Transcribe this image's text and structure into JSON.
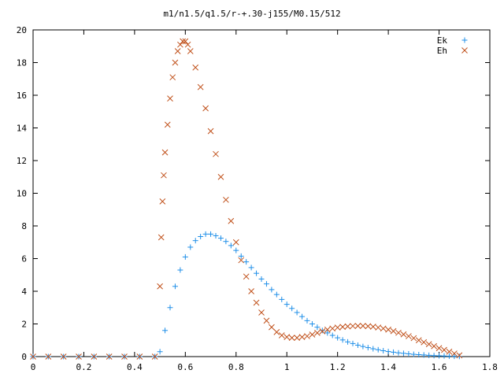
{
  "chart_data": {
    "type": "scatter",
    "title": "m1/n1.5/q1.5/r-+.30-j155/M0.15/512",
    "xlabel": "",
    "ylabel": "",
    "xlim": [
      0,
      1.8
    ],
    "ylim": [
      0,
      20
    ],
    "x_ticks": [
      0,
      0.2,
      0.4,
      0.6,
      0.8,
      1,
      1.2,
      1.4,
      1.6,
      1.8
    ],
    "y_ticks": [
      0,
      2,
      4,
      6,
      8,
      10,
      12,
      14,
      16,
      18,
      20
    ],
    "x_tick_labels": [
      "0",
      "0.2",
      "0.4",
      "0.6",
      "0.8",
      "1",
      "1.2",
      "1.4",
      "1.6",
      "1.8"
    ],
    "y_tick_labels": [
      "0",
      "2",
      "4",
      "6",
      "8",
      "10",
      "12",
      "14",
      "16",
      "18",
      "20"
    ],
    "grid": false,
    "legend_position": "top-right",
    "series": [
      {
        "name": "Ek",
        "marker": "plus",
        "color": "#1f8fe8",
        "x": [
          0,
          0.06,
          0.12,
          0.18,
          0.24,
          0.3,
          0.36,
          0.42,
          0.48,
          0.5,
          0.52,
          0.54,
          0.56,
          0.58,
          0.6,
          0.62,
          0.64,
          0.66,
          0.68,
          0.7,
          0.72,
          0.74,
          0.76,
          0.78,
          0.8,
          0.82,
          0.84,
          0.86,
          0.88,
          0.9,
          0.92,
          0.94,
          0.96,
          0.98,
          1.0,
          1.02,
          1.04,
          1.06,
          1.08,
          1.1,
          1.12,
          1.14,
          1.16,
          1.18,
          1.2,
          1.22,
          1.24,
          1.26,
          1.28,
          1.3,
          1.32,
          1.34,
          1.36,
          1.38,
          1.4,
          1.42,
          1.44,
          1.46,
          1.48,
          1.5,
          1.52,
          1.54,
          1.56,
          1.58,
          1.6,
          1.62,
          1.64,
          1.66,
          1.68
        ],
        "y": [
          0,
          0,
          0,
          0,
          0,
          0,
          0,
          0,
          0,
          0.3,
          1.6,
          3.0,
          4.3,
          5.3,
          6.1,
          6.7,
          7.1,
          7.35,
          7.5,
          7.5,
          7.4,
          7.25,
          7.05,
          6.8,
          6.5,
          6.15,
          5.8,
          5.45,
          5.1,
          4.75,
          4.45,
          4.1,
          3.8,
          3.5,
          3.2,
          2.95,
          2.7,
          2.45,
          2.2,
          2.0,
          1.8,
          1.6,
          1.45,
          1.3,
          1.15,
          1.02,
          0.9,
          0.8,
          0.7,
          0.62,
          0.55,
          0.48,
          0.42,
          0.36,
          0.31,
          0.27,
          0.23,
          0.2,
          0.17,
          0.14,
          0.12,
          0.1,
          0.08,
          0.06,
          0.05,
          0.04,
          0.03,
          0.02,
          0.01
        ]
      },
      {
        "name": "Eh",
        "marker": "cross",
        "color": "#c0501a",
        "x": [
          0,
          0.06,
          0.12,
          0.18,
          0.24,
          0.3,
          0.36,
          0.42,
          0.48,
          0.5,
          0.505,
          0.51,
          0.515,
          0.52,
          0.53,
          0.54,
          0.55,
          0.56,
          0.57,
          0.58,
          0.59,
          0.6,
          0.61,
          0.62,
          0.64,
          0.66,
          0.68,
          0.7,
          0.72,
          0.74,
          0.76,
          0.78,
          0.8,
          0.82,
          0.84,
          0.86,
          0.88,
          0.9,
          0.92,
          0.94,
          0.96,
          0.98,
          1.0,
          1.02,
          1.04,
          1.06,
          1.08,
          1.1,
          1.12,
          1.14,
          1.16,
          1.18,
          1.2,
          1.22,
          1.24,
          1.26,
          1.28,
          1.3,
          1.32,
          1.34,
          1.36,
          1.38,
          1.4,
          1.42,
          1.44,
          1.46,
          1.48,
          1.5,
          1.52,
          1.54,
          1.56,
          1.58,
          1.6,
          1.62,
          1.64,
          1.66,
          1.68
        ],
        "y": [
          0,
          0,
          0,
          0,
          0,
          0,
          0,
          0,
          0,
          4.3,
          7.3,
          9.5,
          11.1,
          12.5,
          14.2,
          15.8,
          17.1,
          18.0,
          18.7,
          19.1,
          19.3,
          19.3,
          19.1,
          18.7,
          17.7,
          16.5,
          15.2,
          13.8,
          12.4,
          11.0,
          9.6,
          8.3,
          7.0,
          5.9,
          4.9,
          4.0,
          3.3,
          2.7,
          2.2,
          1.8,
          1.5,
          1.3,
          1.2,
          1.15,
          1.15,
          1.2,
          1.25,
          1.35,
          1.45,
          1.55,
          1.65,
          1.72,
          1.78,
          1.82,
          1.85,
          1.87,
          1.88,
          1.88,
          1.86,
          1.83,
          1.78,
          1.72,
          1.65,
          1.56,
          1.46,
          1.36,
          1.25,
          1.13,
          1.0,
          0.88,
          0.76,
          0.64,
          0.52,
          0.41,
          0.3,
          0.19,
          0.08
        ]
      }
    ]
  }
}
